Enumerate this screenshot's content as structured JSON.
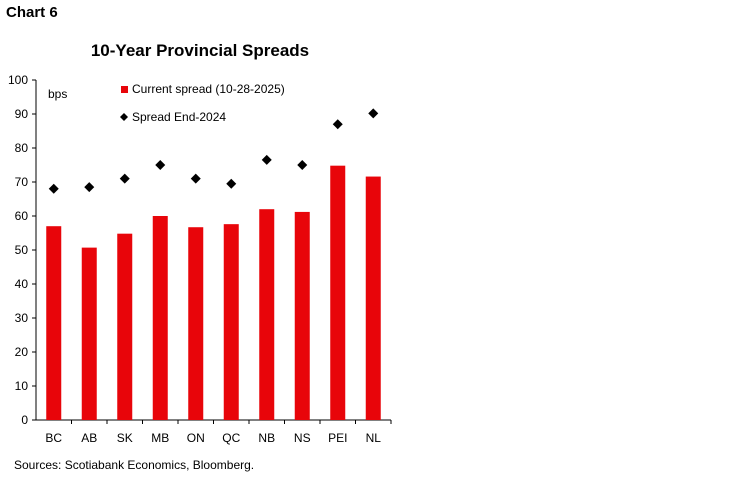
{
  "header": {
    "chart_label": "Chart 6"
  },
  "footer": {
    "source": "Sources: Scotiabank Economics, Bloomberg."
  },
  "colors": {
    "bar": "#e8050a",
    "marker": "#000000"
  },
  "chart_data": {
    "type": "bar",
    "title": "10-Year Provincial Spreads",
    "ylabel": "bps",
    "xlabel": "",
    "ylim": [
      0,
      100
    ],
    "yticks": [
      0,
      10,
      20,
      30,
      40,
      50,
      60,
      70,
      80,
      90,
      100
    ],
    "grid": false,
    "legend_position": "top-left",
    "categories": [
      "BC",
      "AB",
      "SK",
      "MB",
      "ON",
      "QC",
      "NB",
      "NS",
      "PEI",
      "NL"
    ],
    "series": [
      {
        "name": "Current spread (10-28-2025)",
        "type": "bar",
        "marker": "square",
        "values": [
          57,
          50.7,
          54.8,
          60,
          56.7,
          57.6,
          62,
          61.2,
          74.8,
          71.6
        ]
      },
      {
        "name": "Spread End-2024",
        "type": "scatter",
        "marker": "diamond",
        "values": [
          68,
          68.5,
          71,
          75,
          71,
          69.5,
          76.5,
          75,
          87,
          90.2
        ]
      }
    ]
  }
}
